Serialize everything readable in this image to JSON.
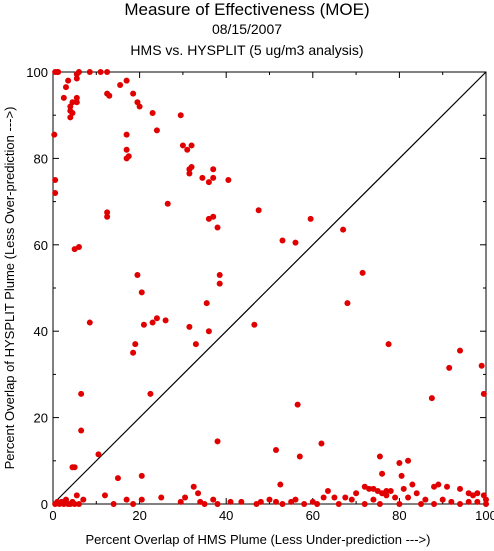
{
  "chart_data": {
    "type": "scatter",
    "title": "Measure of Effectiveness (MOE)",
    "subtitle": "08/15/2007",
    "subtitle2": "HMS vs. HYSPLIT  (5 ug/m3 analysis)",
    "xlabel": "Percent Overlap of HMS Plume (Less Under-prediction --->)",
    "ylabel": "Percent Overlap of HYSPLIT Plume (Less Over-prediction --->)",
    "xlim": [
      0,
      100
    ],
    "ylim": [
      0,
      100
    ],
    "xticks": [
      "0",
      "20",
      "40",
      "60",
      "80",
      "100"
    ],
    "yticks": [
      "0",
      "20",
      "40",
      "60",
      "80",
      "100"
    ],
    "grid": false,
    "marker_color": "#e00000",
    "diagonal_line": true,
    "points": [
      [
        0.5,
        100
      ],
      [
        1,
        100
      ],
      [
        1.2,
        100
      ],
      [
        0.3,
        85.5
      ],
      [
        0.5,
        75
      ],
      [
        0.5,
        72
      ],
      [
        3,
        96.5
      ],
      [
        2.5,
        94
      ],
      [
        3.5,
        98
      ],
      [
        4,
        92
      ],
      [
        4,
        91
      ],
      [
        4.5,
        90.5
      ],
      [
        4,
        89.5
      ],
      [
        4.5,
        93
      ],
      [
        5.5,
        93
      ],
      [
        5.5,
        94
      ],
      [
        5.5,
        98.5
      ],
      [
        5.5,
        99.5
      ],
      [
        6,
        100
      ],
      [
        8.5,
        100
      ],
      [
        11,
        100
      ],
      [
        12.5,
        100
      ],
      [
        12.5,
        95
      ],
      [
        13,
        94.5
      ],
      [
        15.5,
        97
      ],
      [
        17,
        98
      ],
      [
        18.5,
        95
      ],
      [
        19.5,
        93
      ],
      [
        20,
        92
      ],
      [
        23,
        90.5
      ],
      [
        29.5,
        90
      ],
      [
        24,
        86.5
      ],
      [
        17,
        85.5
      ],
      [
        17,
        82
      ],
      [
        17.5,
        80.5
      ],
      [
        17,
        80
      ],
      [
        30,
        83
      ],
      [
        31,
        82
      ],
      [
        32,
        83
      ],
      [
        32,
        78
      ],
      [
        31.5,
        77.5
      ],
      [
        31.5,
        76.5
      ],
      [
        34.5,
        75.5
      ],
      [
        36,
        74.5
      ],
      [
        37,
        75.5
      ],
      [
        37,
        77.5
      ],
      [
        40.5,
        75
      ],
      [
        26.5,
        69.5
      ],
      [
        47.5,
        68
      ],
      [
        12.5,
        67.5
      ],
      [
        12.5,
        66.5
      ],
      [
        36,
        66
      ],
      [
        37,
        66.5
      ],
      [
        38,
        64
      ],
      [
        59.5,
        66
      ],
      [
        67,
        63.5
      ],
      [
        53,
        61
      ],
      [
        56,
        60.5
      ],
      [
        5,
        59
      ],
      [
        6,
        59.5
      ],
      [
        71.5,
        53.5
      ],
      [
        19.5,
        53
      ],
      [
        38.5,
        53
      ],
      [
        38.5,
        51
      ],
      [
        20.5,
        49
      ],
      [
        35.5,
        46.5
      ],
      [
        68,
        46.5
      ],
      [
        8.5,
        42
      ],
      [
        21,
        41.5
      ],
      [
        23,
        42
      ],
      [
        24,
        43
      ],
      [
        26,
        42.5
      ],
      [
        31.5,
        41
      ],
      [
        36,
        40
      ],
      [
        46.5,
        41.5
      ],
      [
        19,
        37
      ],
      [
        33,
        37
      ],
      [
        18.5,
        35
      ],
      [
        77.5,
        37
      ],
      [
        6.5,
        25.5
      ],
      [
        22.5,
        25.5
      ],
      [
        94,
        35.5
      ],
      [
        91.5,
        31.5
      ],
      [
        99,
        32
      ],
      [
        99.5,
        25.5
      ],
      [
        87.5,
        24.5
      ],
      [
        6.5,
        17
      ],
      [
        56.5,
        23
      ],
      [
        10.5,
        11.5
      ],
      [
        38,
        14.5
      ],
      [
        62,
        14
      ],
      [
        51.5,
        12.5
      ],
      [
        57,
        11
      ],
      [
        75.5,
        11
      ],
      [
        80,
        9.5
      ],
      [
        82,
        10
      ],
      [
        4.5,
        8.5
      ],
      [
        5,
        8.5
      ],
      [
        15,
        6
      ],
      [
        20.5,
        6.5
      ],
      [
        76,
        7
      ],
      [
        80.5,
        6.5
      ],
      [
        83,
        4.5
      ],
      [
        81,
        3.5
      ],
      [
        73,
        3.5
      ],
      [
        74,
        3.5
      ],
      [
        75,
        3
      ],
      [
        76,
        2.5
      ],
      [
        77,
        3
      ],
      [
        78,
        3
      ],
      [
        72,
        4
      ],
      [
        88,
        4
      ],
      [
        89,
        4.5
      ],
      [
        91,
        4
      ],
      [
        94,
        3.5
      ],
      [
        96,
        2.5
      ],
      [
        97,
        2
      ],
      [
        98,
        2.5
      ],
      [
        0.5,
        0
      ],
      [
        1,
        0.5
      ],
      [
        1.5,
        0
      ],
      [
        2,
        0.5
      ],
      [
        2.5,
        0
      ],
      [
        3,
        1
      ],
      [
        3.5,
        0
      ],
      [
        4,
        0
      ],
      [
        4.5,
        0.5
      ],
      [
        5,
        0
      ],
      [
        5.5,
        2
      ],
      [
        6,
        0
      ],
      [
        7,
        1
      ],
      [
        12,
        2
      ],
      [
        14,
        0
      ],
      [
        17,
        1
      ],
      [
        18.5,
        0
      ],
      [
        20.5,
        1
      ],
      [
        25,
        1.5
      ],
      [
        29.5,
        0.5
      ],
      [
        30.5,
        1.5
      ],
      [
        32.5,
        4
      ],
      [
        33.5,
        2.5
      ],
      [
        34,
        0.5
      ],
      [
        35,
        0
      ],
      [
        37,
        1
      ],
      [
        38,
        0
      ],
      [
        41,
        0.5
      ],
      [
        43.5,
        0.5
      ],
      [
        47,
        0
      ],
      [
        48,
        0.5
      ],
      [
        50,
        1
      ],
      [
        51.5,
        0.5
      ],
      [
        52.5,
        4.5
      ],
      [
        53,
        0
      ],
      [
        55,
        0.5
      ],
      [
        56,
        1
      ],
      [
        58,
        0
      ],
      [
        60,
        0.5
      ],
      [
        61,
        0
      ],
      [
        62.5,
        1.5
      ],
      [
        63.5,
        3
      ],
      [
        65,
        1.5
      ],
      [
        66,
        0
      ],
      [
        67.5,
        1.5
      ],
      [
        69,
        1
      ],
      [
        70,
        2.5
      ],
      [
        72,
        0
      ],
      [
        74,
        1
      ],
      [
        75.5,
        0
      ],
      [
        77,
        2
      ],
      [
        79,
        1.5
      ],
      [
        80,
        0
      ],
      [
        82,
        1.5
      ],
      [
        84,
        2.5
      ],
      [
        85,
        0
      ],
      [
        86,
        1
      ],
      [
        88,
        0
      ],
      [
        90,
        1
      ],
      [
        92,
        0.5
      ],
      [
        94,
        0
      ],
      [
        96,
        0.5
      ],
      [
        98,
        0.5
      ],
      [
        100,
        0
      ],
      [
        100,
        1
      ],
      [
        99.5,
        2
      ]
    ]
  }
}
